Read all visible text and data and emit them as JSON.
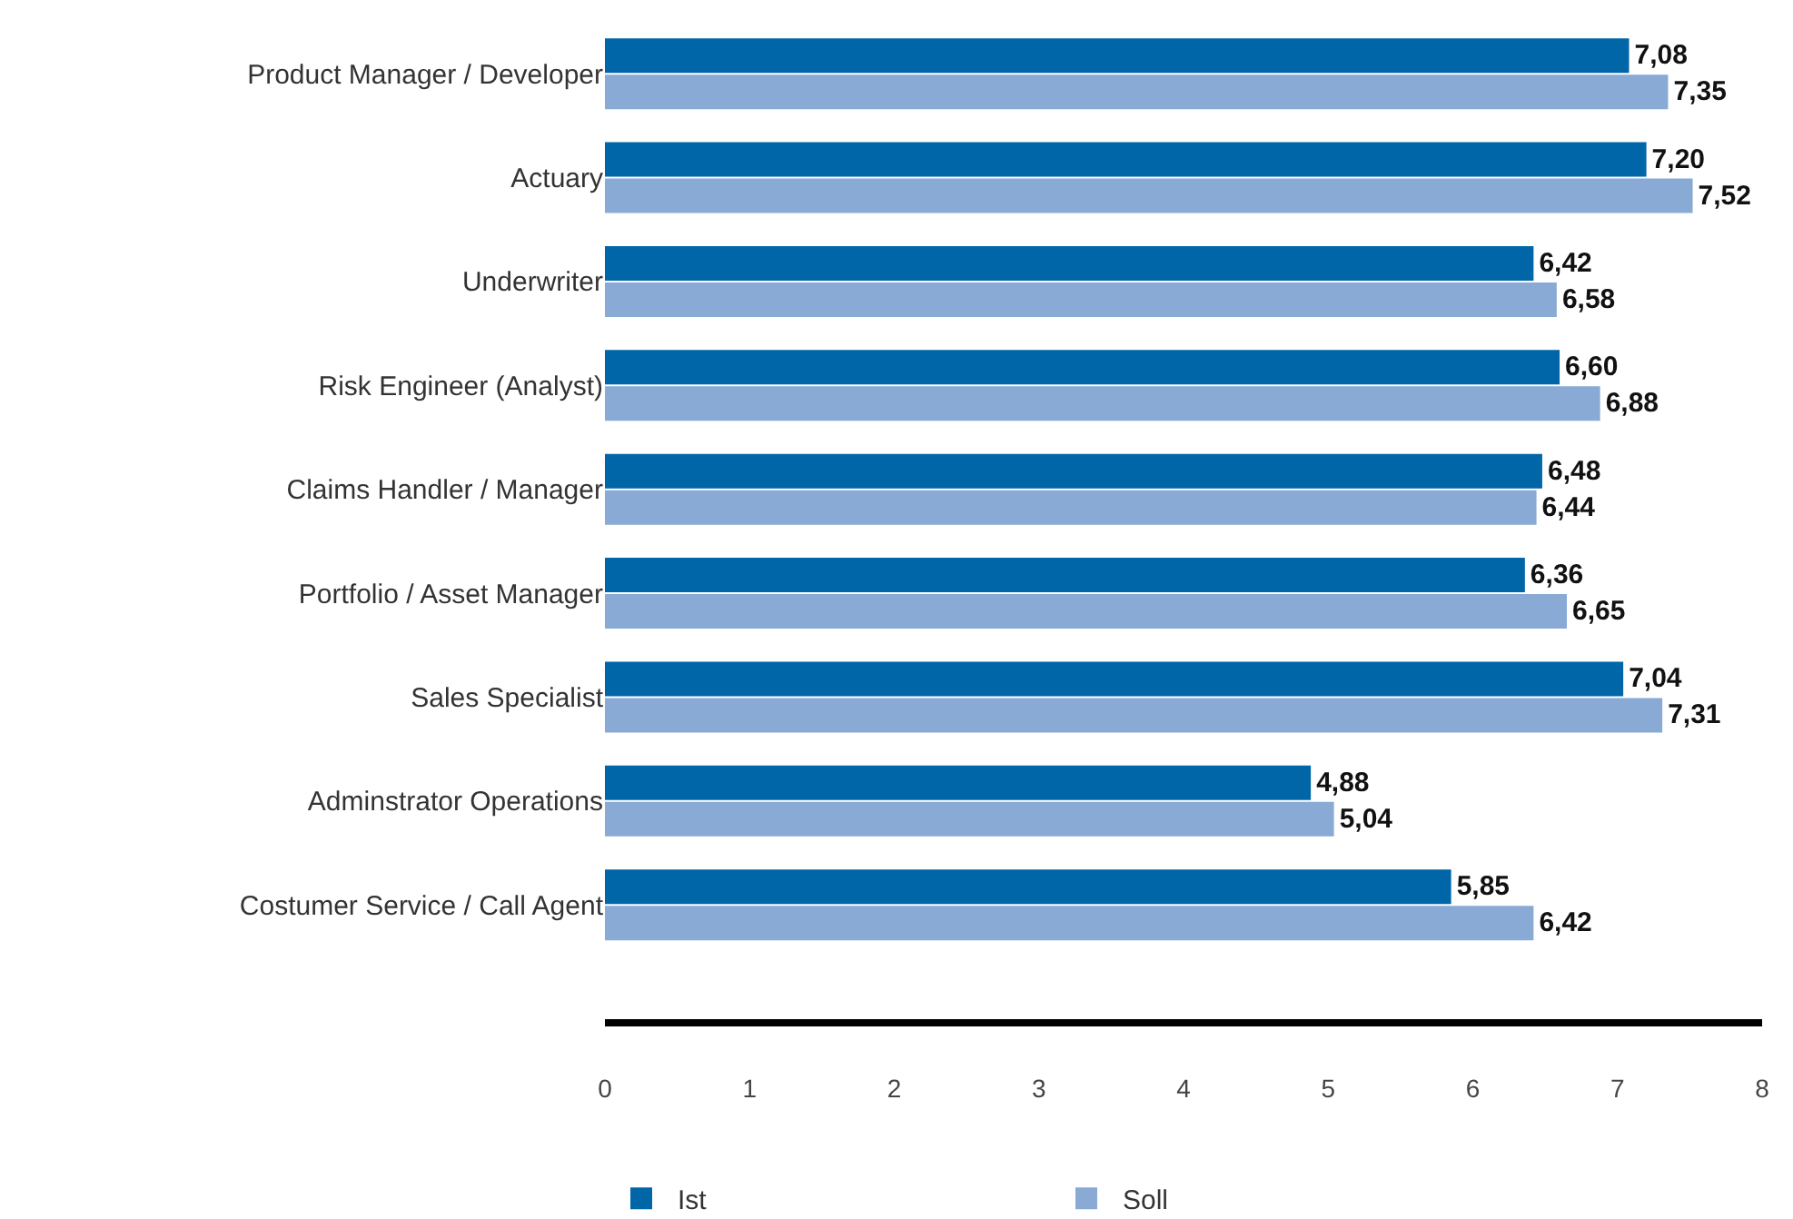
{
  "chart_data": {
    "type": "bar",
    "orientation": "horizontal",
    "categories": [
      "Product Manager / Developer",
      "Actuary",
      "Underwriter",
      "Risk Engineer (Analyst)",
      "Claims Handler / Manager",
      "Portfolio / Asset Manager",
      "Sales Specialist",
      "Adminstrator Operations",
      "Costumer Service / Call Agent"
    ],
    "series": [
      {
        "name": "Ist",
        "color": "#0066a8",
        "values": [
          7.08,
          7.2,
          6.42,
          6.6,
          6.48,
          6.36,
          7.04,
          4.88,
          5.85
        ],
        "value_labels": [
          "7,08",
          "7,20",
          "6,42",
          "6,60",
          "6,48",
          "6,36",
          "7,04",
          "4,88",
          "5,85"
        ]
      },
      {
        "name": "Soll",
        "color": "#88aad5",
        "values": [
          7.35,
          7.52,
          6.58,
          6.88,
          6.44,
          6.65,
          7.31,
          5.04,
          6.42
        ],
        "value_labels": [
          "7,35",
          "7,52",
          "6,58",
          "6,88",
          "6,44",
          "6,65",
          "7,31",
          "5,04",
          "6,42"
        ]
      }
    ],
    "xlim": [
      0,
      8
    ],
    "xticks": [
      0,
      1,
      2,
      3,
      4,
      5,
      6,
      7,
      8
    ],
    "legend": "bottom"
  }
}
